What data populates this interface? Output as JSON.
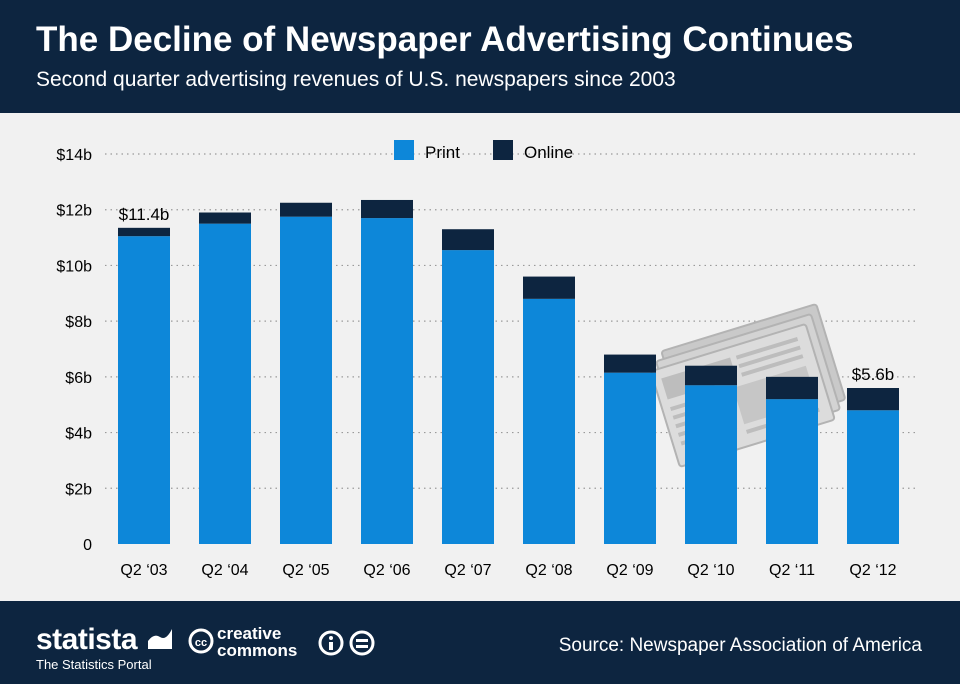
{
  "header": {
    "title": "The Decline of Newspaper Advertising Continues",
    "subtitle": "Second quarter advertising revenues of U.S. newspapers since 2003"
  },
  "footer": {
    "brand": "statista",
    "brand_tagline": "The Statistics Portal",
    "license_top": "creative",
    "license_bottom": "commons",
    "source": "Source: Newspaper Association of America"
  },
  "colors": {
    "print": "#0d87d9",
    "online": "#0d2540",
    "header_bg": "#0d2540",
    "background": "#f1f1f1"
  },
  "chart_data": {
    "type": "bar",
    "stacked": true,
    "title": "The Decline of Newspaper Advertising Continues",
    "xlabel": "",
    "ylabel": "",
    "ylim": [
      0,
      14
    ],
    "y_ticks": [
      0,
      2,
      4,
      6,
      8,
      10,
      12,
      14
    ],
    "y_tick_labels": [
      "0",
      "$2b",
      "$4b",
      "$6b",
      "$8b",
      "$10b",
      "$12b",
      "$14b"
    ],
    "grid": true,
    "legend_position": "top-center",
    "categories": [
      "Q2 ‘03",
      "Q2 ‘04",
      "Q2 ‘05",
      "Q2 ‘06",
      "Q2 ‘07",
      "Q2 ‘08",
      "Q2 ‘09",
      "Q2 ‘10",
      "Q2 ‘11",
      "Q2 ‘12"
    ],
    "series": [
      {
        "name": "Print",
        "values": [
          11.05,
          11.5,
          11.75,
          11.7,
          10.55,
          8.8,
          6.15,
          5.7,
          5.2,
          4.8
        ]
      },
      {
        "name": "Online",
        "values": [
          0.3,
          0.4,
          0.5,
          0.65,
          0.75,
          0.8,
          0.65,
          0.7,
          0.8,
          0.8
        ]
      }
    ],
    "annotations": [
      {
        "category_index": 0,
        "text": "$11.4b"
      },
      {
        "category_index": 9,
        "text": "$5.6b"
      }
    ],
    "decoration": "newspaper-illustration"
  }
}
